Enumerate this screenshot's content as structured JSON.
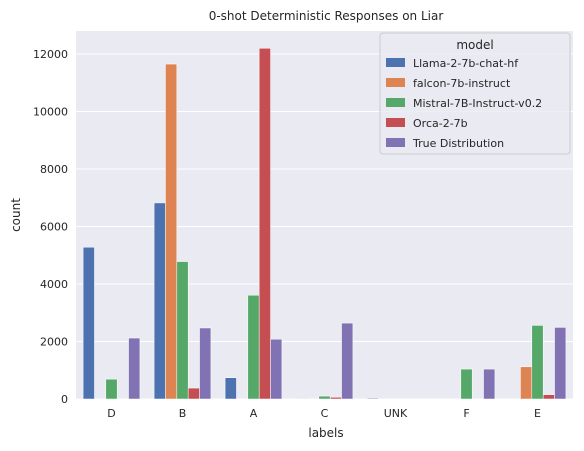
{
  "chart_data": {
    "type": "bar",
    "title": "0-shot Deterministic Responses on Liar",
    "xlabel": "labels",
    "ylabel": "count",
    "ylim": [
      0,
      12800
    ],
    "yticks": [
      0,
      2000,
      4000,
      6000,
      8000,
      10000,
      12000
    ],
    "grid": true,
    "legend_title": "model",
    "legend_position": "top-right",
    "categories": [
      "D",
      "B",
      "A",
      "C",
      "UNK",
      "F",
      "E"
    ],
    "series": [
      {
        "name": "Llama-2-7b-chat-hf",
        "color": "#4c72b0",
        "values": [
          5280,
          6820,
          740,
          20,
          30,
          0,
          0
        ]
      },
      {
        "name": "falcon-7b-instruct",
        "color": "#dd8452",
        "values": [
          0,
          11650,
          0,
          0,
          0,
          0,
          1120
        ]
      },
      {
        "name": "Mistral-7B-Instruct-v0.2",
        "color": "#55a868",
        "values": [
          690,
          4780,
          3610,
          100,
          0,
          1040,
          2560
        ]
      },
      {
        "name": "Orca-2-7b",
        "color": "#c44e52",
        "values": [
          0,
          380,
          12200,
          60,
          0,
          0,
          150
        ]
      },
      {
        "name": "True Distribution",
        "color": "#8172b3",
        "values": [
          2120,
          2470,
          2080,
          2640,
          0,
          1040,
          2490
        ]
      }
    ]
  }
}
